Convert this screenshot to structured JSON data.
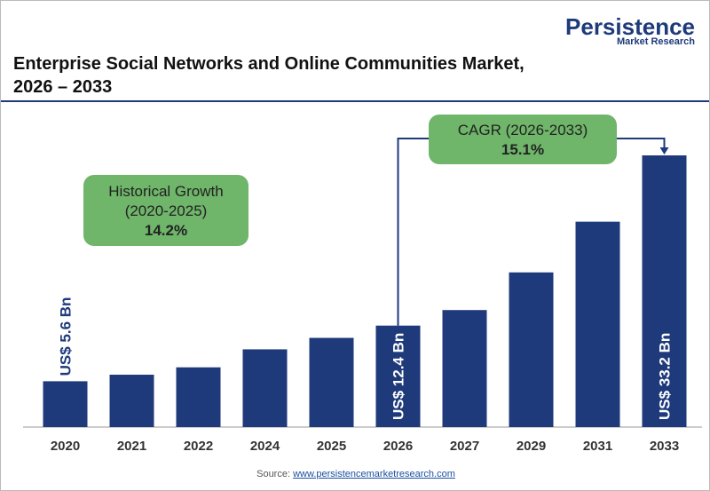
{
  "chart_data": {
    "type": "bar",
    "title": "Enterprise Social Networks and Online Communities Market, 2026 – 2033",
    "logo": {
      "name": "Persistence",
      "tagline": "Market Research"
    },
    "categories": [
      "2020",
      "2021",
      "2022",
      "2024",
      "2025",
      "2026",
      "2027",
      "2029",
      "2031",
      "2033"
    ],
    "values": [
      5.6,
      6.4,
      7.3,
      9.5,
      10.9,
      12.4,
      14.3,
      18.9,
      25.1,
      33.2
    ],
    "value_labels": [
      "US$ 5.6 Bn",
      null,
      null,
      null,
      null,
      "US$ 12.4 Bn",
      null,
      null,
      null,
      "US$ 33.2 Bn"
    ],
    "color": "#1e3a7b",
    "annotations": [
      {
        "lines": [
          "Historical Growth",
          "(2020-2025)"
        ],
        "value": "14.2%"
      },
      {
        "lines": [
          "CAGR (2026-2033)"
        ],
        "value": "15.1%"
      }
    ],
    "source": {
      "label": "Source:",
      "url": "www.persistencemarketresearch.com"
    }
  }
}
